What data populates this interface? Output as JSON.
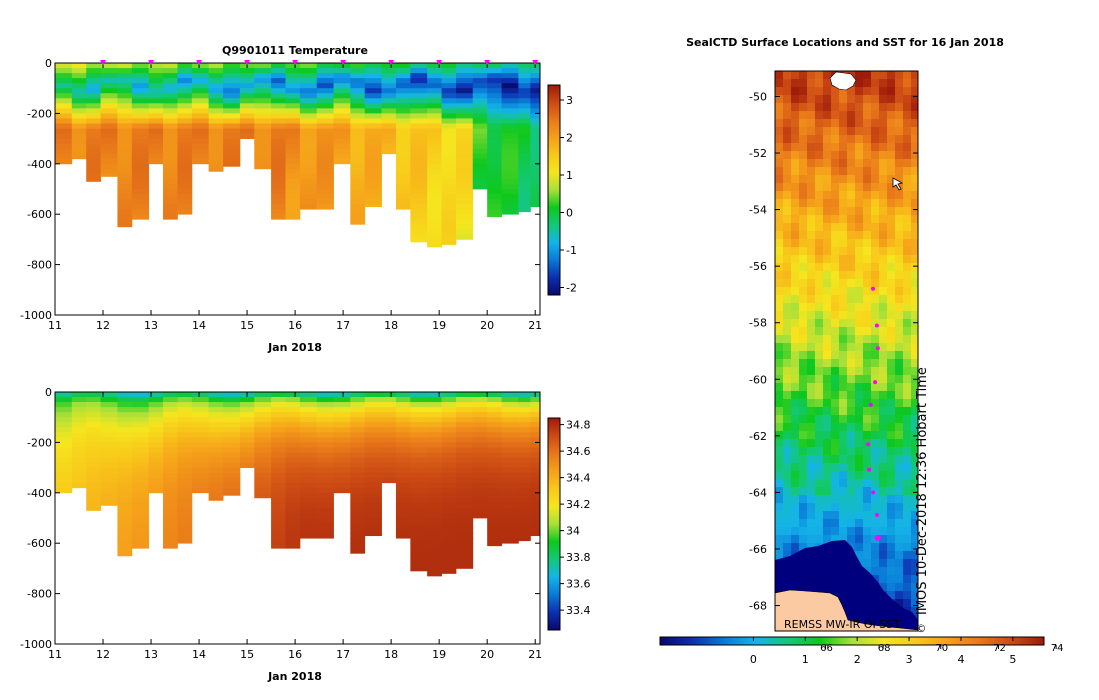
{
  "colors": {
    "colormap_temperature": [
      "#08086a",
      "#0d2fb0",
      "#0a79d6",
      "#14b4e8",
      "#14c878",
      "#0ec81e",
      "#a8e03a",
      "#f5e61e",
      "#f8c81a",
      "#f5a01a",
      "#e8781a",
      "#cc4a14",
      "#9e1a0a"
    ],
    "colormap_salinity": [
      "#08086a",
      "#0d2fb0",
      "#0a79d6",
      "#14b4e8",
      "#14c878",
      "#0ec81e",
      "#a8e03a",
      "#f5e61e",
      "#f8c81a",
      "#f5a01a",
      "#e8781a",
      "#cc4a14",
      "#9e1a0a"
    ],
    "land": "#fbc9a2",
    "ice": "#00007e",
    "marker": "#ff00ff"
  },
  "chart_data": [
    {
      "type": "heatmap",
      "title": "Q9901011  Temperature",
      "xlabel": "Jan 2018",
      "ylabel": "",
      "x_ticks": [
        "11",
        "12",
        "13",
        "14",
        "15",
        "16",
        "17",
        "18",
        "19",
        "20",
        "21"
      ],
      "y_ticks": [
        "0",
        "-200",
        "-400",
        "-600",
        "-800",
        "-1000"
      ],
      "xlim": [
        11,
        21.1
      ],
      "ylim": [
        -1000,
        0
      ],
      "colorbar_ticks": [
        "3",
        "2",
        "1",
        "0",
        "-1",
        "-2"
      ],
      "colorbar_range": [
        -2.2,
        3.4
      ],
      "profile_times": [
        11,
        11.35,
        11.65,
        11.95,
        12.3,
        12.6,
        12.95,
        13.25,
        13.55,
        13.85,
        14.2,
        14.5,
        14.85,
        15.15,
        15.5,
        15.8,
        16.1,
        16.45,
        16.8,
        17.15,
        17.45,
        17.8,
        18.1,
        18.4,
        18.75,
        19.05,
        19.35,
        19.7,
        20.0,
        20.3,
        20.65,
        20.9
      ],
      "profile_max_depth": [
        400,
        380,
        470,
        450,
        650,
        620,
        400,
        620,
        600,
        400,
        430,
        410,
        300,
        420,
        620,
        620,
        580,
        580,
        400,
        640,
        570,
        360,
        580,
        710,
        730,
        720,
        700,
        500,
        610,
        600,
        590,
        570
      ],
      "surface_marker_days": [
        12,
        13,
        14,
        15,
        16,
        17,
        18,
        19,
        20,
        21
      ]
    },
    {
      "type": "heatmap",
      "title": "",
      "xlabel": "Jan 2018",
      "ylabel": "",
      "x_ticks": [
        "11",
        "12",
        "13",
        "14",
        "15",
        "16",
        "17",
        "18",
        "19",
        "20",
        "21"
      ],
      "y_ticks": [
        "0",
        "-200",
        "-400",
        "-600",
        "-800",
        "-1000"
      ],
      "xlim": [
        11,
        21.1
      ],
      "ylim": [
        -1000,
        0
      ],
      "colorbar_ticks": [
        "34.8",
        "34.6",
        "34.4",
        "34.2",
        "34",
        "33.8",
        "33.6",
        "33.4"
      ],
      "colorbar_range": [
        33.25,
        34.85
      ]
    },
    {
      "type": "heatmap",
      "title": "SealCTD Surface Locations and SST for 16 Jan 2018",
      "xlabel": "",
      "ylabel": "",
      "y_ticks": [
        "-50",
        "-52",
        "-54",
        "-56",
        "-58",
        "-60",
        "-62",
        "-64",
        "-66",
        "-68"
      ],
      "ylim": [
        -68.9,
        -49.1
      ],
      "colorbar_ticks": [
        "0",
        "1",
        "2",
        "3",
        "4",
        "5"
      ],
      "colorbar_range": [
        -1.8,
        5.6
      ],
      "fahrenheit_ticks": [
        "66",
        "68",
        "70",
        "72",
        "74"
      ],
      "credit": "REMSS MW-IR OI SST",
      "vertical_caption": "IMOS 10-Dec-2018 12:36 Hobart Time",
      "copyright_symbol": "©",
      "track_latitudes": [
        -56.8,
        -58.1,
        -58.9,
        -60.1,
        -60.9,
        -62.3,
        -63.2,
        -64.0,
        -64.8,
        -65.6
      ]
    }
  ]
}
